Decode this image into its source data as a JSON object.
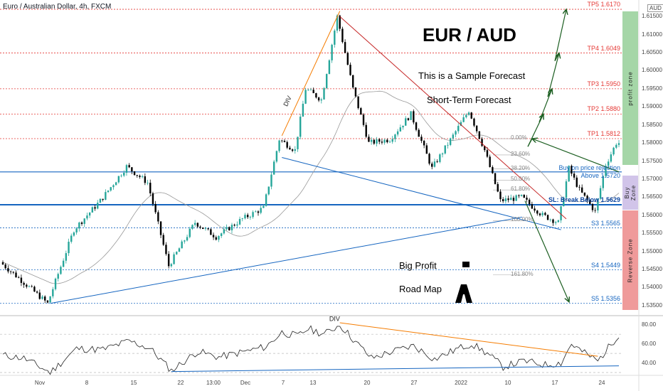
{
  "header": {
    "symbol": "Euro / Australian Dollar, 4h, FXCM"
  },
  "currency": "AUD",
  "titles": {
    "main": "EUR / AUD",
    "sample": "This is a Sample Forecast",
    "short_term": "Short-Term Forecast",
    "big_profit": "Big Profit",
    "road_map": "Road Map",
    "div_price": "DIV",
    "div_rsi": "DIV"
  },
  "zones": {
    "profit": "profit zone",
    "buy": "Buy Zone",
    "reverse": "Reverse Zone"
  },
  "levels": [
    {
      "label": "TP5 1.6170",
      "value": 1.617,
      "color": "#e53935"
    },
    {
      "label": "TP4 1.6049",
      "value": 1.6049,
      "color": "#e53935"
    },
    {
      "label": "TP3 1.5950",
      "value": 1.595,
      "color": "#e53935"
    },
    {
      "label": "TP2 1.5880",
      "value": 1.588,
      "color": "#e53935"
    },
    {
      "label": "TP1 1.5812",
      "value": 1.5812,
      "color": "#e53935"
    },
    {
      "label": "SL: Break Below 1.5629",
      "value": 1.5629,
      "color": "#1565c0"
    },
    {
      "label": "S3 1.5565",
      "value": 1.5565,
      "color": "#1565c0"
    },
    {
      "label": "S4 1.5449",
      "value": 1.5449,
      "color": "#1565c0"
    },
    {
      "label": "S5 1.5356",
      "value": 1.5356,
      "color": "#1565c0"
    }
  ],
  "buy_level": {
    "label1": "Buy on price rejection",
    "label2": "Above 1.5720",
    "value": 1.572
  },
  "fib": [
    {
      "label": "0.00%",
      "value": 1.5812
    },
    {
      "label": "23.60%",
      "value": 1.5767
    },
    {
      "label": "38.20%",
      "value": 1.5728
    },
    {
      "label": "50.00%",
      "value": 1.5697
    },
    {
      "label": "61.80%",
      "value": 1.567
    },
    {
      "label": "100.00%",
      "value": 1.5585
    },
    {
      "label": "161.80%",
      "value": 1.5435
    }
  ],
  "colors": {
    "up": "#26a69a",
    "down": "#000000",
    "tp": "#e53935",
    "support": "#1565c0",
    "profit_zone": "#a5d6a7",
    "buy_zone": "#d1c4e9",
    "reverse_zone": "#ef9a9a",
    "trend": "#1565c0",
    "resistance": "#c62828",
    "div": "#f57c00"
  },
  "chart_data": {
    "type": "candlestick",
    "title": "Euro / Australian Dollar, 4h, FXCM",
    "ylim": [
      1.533,
      1.618
    ],
    "y_ticks": [
      "1.61500",
      "1.61000",
      "1.60500",
      "1.60000",
      "1.59500",
      "1.59000",
      "1.58500",
      "1.58000",
      "1.57500",
      "1.57000",
      "1.56500",
      "1.56000",
      "1.55500",
      "1.55000",
      "1.54500",
      "1.54000",
      "1.53500"
    ],
    "x_ticks": [
      "Nov",
      "8",
      "15",
      "22",
      "13:00",
      "Dec",
      "7",
      "13",
      "20",
      "27",
      "2022",
      "10",
      "17",
      "24"
    ],
    "anchors": [
      {
        "x": 0,
        "y": 1.547
      },
      {
        "x": 8,
        "y": 1.542
      },
      {
        "x": 18,
        "y": 1.5356
      },
      {
        "x": 28,
        "y": 1.556
      },
      {
        "x": 38,
        "y": 1.564
      },
      {
        "x": 48,
        "y": 1.5735
      },
      {
        "x": 56,
        "y": 1.569
      },
      {
        "x": 64,
        "y": 1.546
      },
      {
        "x": 74,
        "y": 1.558
      },
      {
        "x": 82,
        "y": 1.554
      },
      {
        "x": 92,
        "y": 1.559
      },
      {
        "x": 100,
        "y": 1.562
      },
      {
        "x": 106,
        "y": 1.581
      },
      {
        "x": 112,
        "y": 1.578
      },
      {
        "x": 116,
        "y": 1.595
      },
      {
        "x": 122,
        "y": 1.592
      },
      {
        "x": 128,
        "y": 1.615
      },
      {
        "x": 134,
        "y": 1.595
      },
      {
        "x": 140,
        "y": 1.58
      },
      {
        "x": 148,
        "y": 1.581
      },
      {
        "x": 156,
        "y": 1.588
      },
      {
        "x": 164,
        "y": 1.573
      },
      {
        "x": 172,
        "y": 1.582
      },
      {
        "x": 178,
        "y": 1.589
      },
      {
        "x": 184,
        "y": 1.578
      },
      {
        "x": 190,
        "y": 1.564
      },
      {
        "x": 198,
        "y": 1.565
      },
      {
        "x": 206,
        "y": 1.56
      },
      {
        "x": 212,
        "y": 1.558
      },
      {
        "x": 216,
        "y": 1.573
      },
      {
        "x": 220,
        "y": 1.567
      },
      {
        "x": 226,
        "y": 1.561
      },
      {
        "x": 230,
        "y": 1.574
      },
      {
        "x": 234,
        "y": 1.58
      }
    ],
    "fib_range": [
      1.5585,
      1.5812
    ],
    "rsi": {
      "ylim": [
        30,
        85
      ],
      "ticks": [
        "80.00",
        "60.00",
        "40.00"
      ],
      "levels": [
        70,
        50,
        30
      ],
      "anchors": [
        {
          "x": 0,
          "y": 48
        },
        {
          "x": 8,
          "y": 45
        },
        {
          "x": 18,
          "y": 30
        },
        {
          "x": 28,
          "y": 55
        },
        {
          "x": 38,
          "y": 54
        },
        {
          "x": 48,
          "y": 63
        },
        {
          "x": 56,
          "y": 55
        },
        {
          "x": 64,
          "y": 32
        },
        {
          "x": 74,
          "y": 52
        },
        {
          "x": 82,
          "y": 46
        },
        {
          "x": 92,
          "y": 52
        },
        {
          "x": 100,
          "y": 57
        },
        {
          "x": 106,
          "y": 72
        },
        {
          "x": 112,
          "y": 68
        },
        {
          "x": 116,
          "y": 76
        },
        {
          "x": 122,
          "y": 70
        },
        {
          "x": 128,
          "y": 80
        },
        {
          "x": 134,
          "y": 62
        },
        {
          "x": 140,
          "y": 45
        },
        {
          "x": 148,
          "y": 52
        },
        {
          "x": 156,
          "y": 58
        },
        {
          "x": 164,
          "y": 44
        },
        {
          "x": 172,
          "y": 54
        },
        {
          "x": 178,
          "y": 60
        },
        {
          "x": 184,
          "y": 50
        },
        {
          "x": 190,
          "y": 36
        },
        {
          "x": 198,
          "y": 42
        },
        {
          "x": 206,
          "y": 38
        },
        {
          "x": 212,
          "y": 40
        },
        {
          "x": 216,
          "y": 60
        },
        {
          "x": 220,
          "y": 52
        },
        {
          "x": 226,
          "y": 42
        },
        {
          "x": 230,
          "y": 56
        },
        {
          "x": 234,
          "y": 70
        }
      ]
    }
  }
}
